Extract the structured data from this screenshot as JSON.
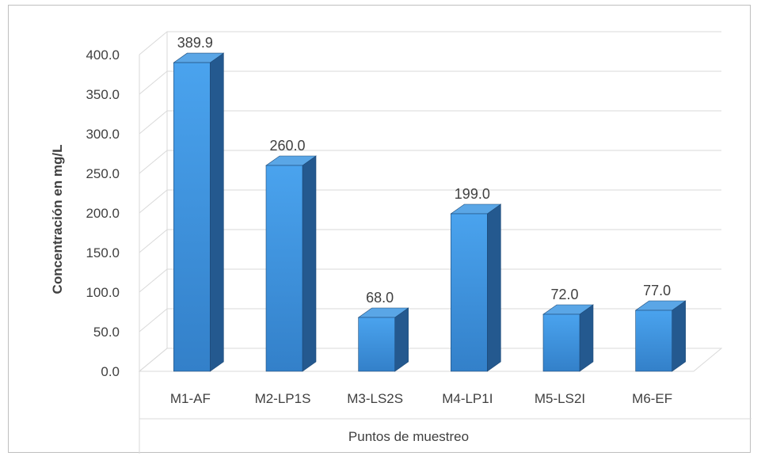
{
  "chart_data": {
    "type": "bar",
    "title": "",
    "xlabel": "Puntos de muestreo",
    "ylabel": "Concentración en mg/L",
    "categories": [
      "M1-AF",
      "M2-LP1S",
      "M3-LS2S",
      "M4-LP1I",
      "M5-LS2I",
      "M6-EF"
    ],
    "values": [
      389.9,
      260.0,
      68.0,
      199.0,
      72.0,
      77.0
    ],
    "value_labels": [
      "389.9",
      "260.0",
      "68.0",
      "199.0",
      "72.0",
      "77.0"
    ],
    "ylim": [
      0,
      400
    ],
    "yticks": [
      "0.0",
      "50.0",
      "100.0",
      "150.0",
      "200.0",
      "250.0",
      "300.0",
      "350.0",
      "400.0"
    ],
    "grid": true,
    "style": "3d-column",
    "colors": {
      "bar_front": "#3d8fd9",
      "bar_front_top": "#4aa3ee",
      "bar_side": "#24598f",
      "bar_top": "#5aa6e6",
      "grid": "#d9d9d9",
      "text": "#404040"
    }
  }
}
